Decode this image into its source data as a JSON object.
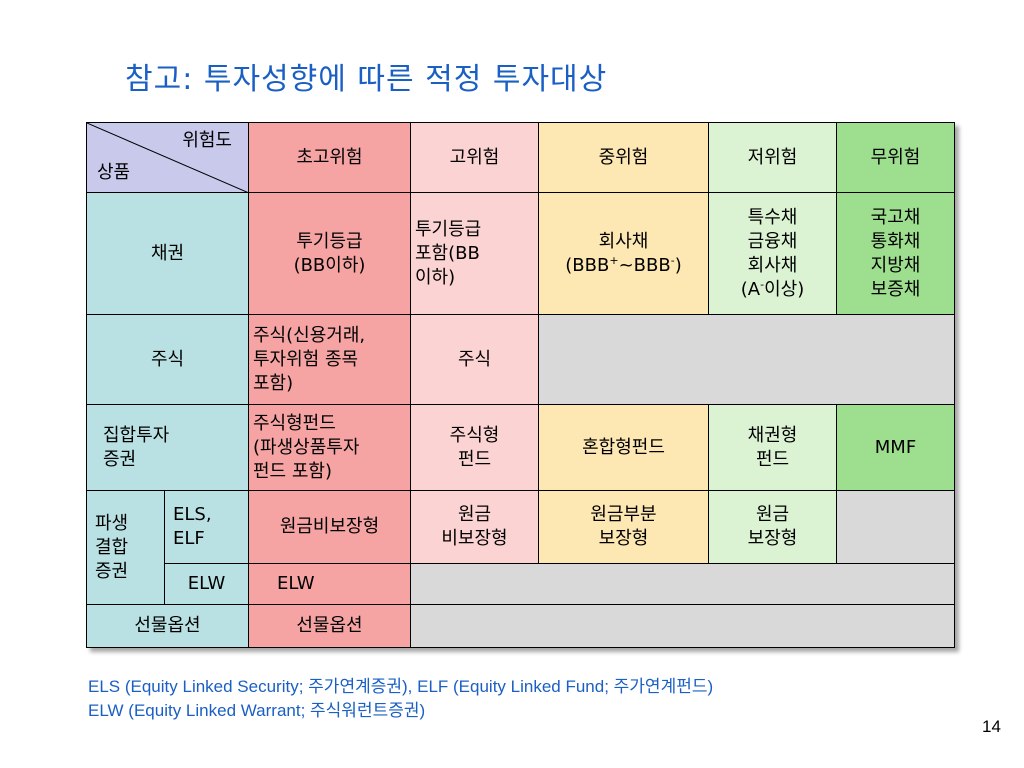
{
  "title": "참고: 투자성향에 따른 적정 투자대상",
  "table": {
    "corner": {
      "risk_label": "위험도",
      "product_label": "상품"
    },
    "headers": [
      "초고위험",
      "고위험",
      "중위험",
      "저위험",
      "무위험"
    ],
    "rows": {
      "bond": {
        "label": "채권",
        "very_high": "투기등급\n(BB이하)",
        "high": "투기등급\n포함(BB\n이하)",
        "medium_text": "회사채",
        "medium_range": {
          "open": "(BBB",
          "plus": "+",
          "tilde": "~BBB",
          "minus": "-",
          "close": ")"
        },
        "low": "특수채\n금융채\n회사채",
        "low_grade": {
          "open": "(A",
          "minus": "-",
          "rest": "이상)"
        },
        "none": "국고채\n통화채\n지방채\n보증채"
      },
      "stock": {
        "label": "주식",
        "very_high": "주식(신용거래,\n투자위험 종목\n포함)",
        "high": "주식"
      },
      "fund": {
        "label": "집합투자\n증권",
        "very_high": "주식형펀드\n(파생상품투자\n펀드 포함)",
        "high": "주식형\n펀드",
        "medium": "혼합형펀드",
        "low": "채권형\n펀드",
        "none": "MMF"
      },
      "derivative": {
        "label": "파생\n결합\n증권",
        "els": {
          "label": "ELS,\nELF",
          "very_high": "원금비보장형",
          "high": "원금\n비보장형",
          "medium": "원금부분\n보장형",
          "low": "원금\n보장형"
        },
        "elw": {
          "label": "ELW",
          "very_high": "ELW"
        }
      },
      "futures": {
        "label": "선물옵션",
        "very_high": "선물옵션"
      }
    }
  },
  "footnote": {
    "line1": "ELS (Equity Linked Security; 주가연계증권), ELF (Equity Linked Fund; 주가연계펀드)",
    "line2": "ELW (Equity Linked Warrant; 주식워런트증권)"
  },
  "page_number": "14"
}
